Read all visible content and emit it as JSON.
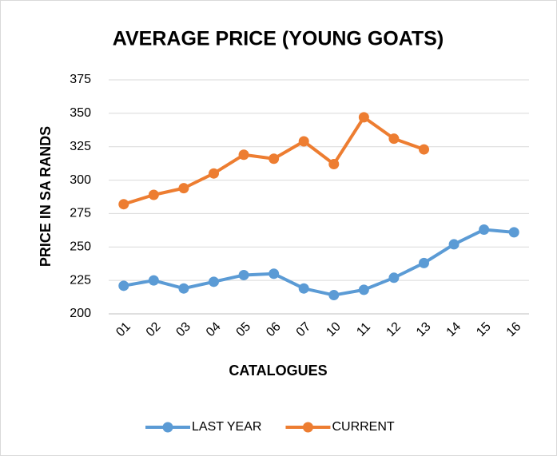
{
  "chart_data": {
    "type": "line",
    "title": "AVERAGE PRICE (YOUNG GOATS)",
    "x_label": "CATALOGUES",
    "y_label": "PRICE IN SA RANDS",
    "categories": [
      "01",
      "02",
      "03",
      "04",
      "05",
      "06",
      "07",
      "10",
      "11",
      "12",
      "13",
      "14",
      "15",
      "16"
    ],
    "series": [
      {
        "name": "LAST YEAR",
        "color": "#5b9bd5",
        "values": [
          221,
          225,
          219,
          224,
          229,
          230,
          219,
          214,
          218,
          227,
          238,
          252,
          263,
          261
        ]
      },
      {
        "name": "CURRENT",
        "color": "#ed7d31",
        "values": [
          282,
          289,
          294,
          305,
          319,
          316,
          329,
          312,
          347,
          331,
          323,
          null,
          null,
          null
        ]
      }
    ],
    "ylim": [
      200,
      375
    ],
    "yticks": [
      200,
      225,
      250,
      275,
      300,
      325,
      350,
      375
    ],
    "grid": true,
    "legend": "bottom"
  }
}
